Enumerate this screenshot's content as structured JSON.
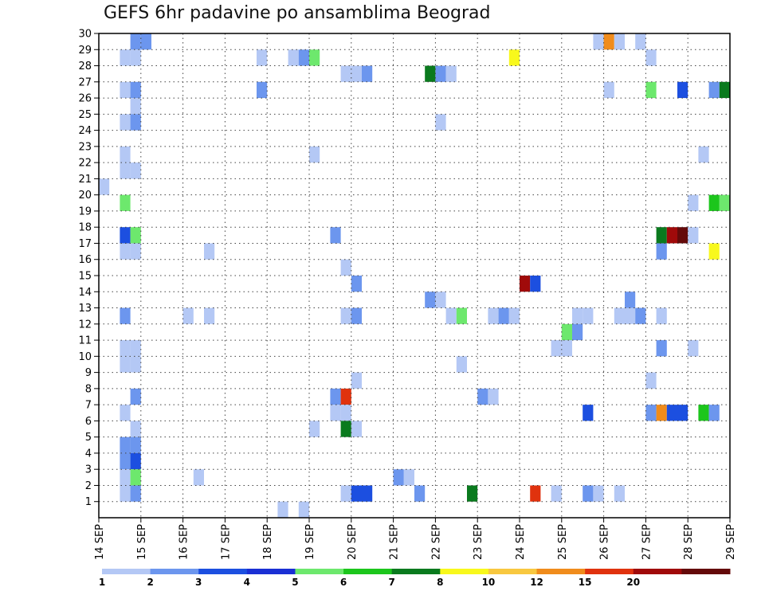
{
  "chart_data": {
    "type": "heatmap",
    "title": "GEFS 6hr padavine po ansamblima Beograd",
    "x_tick_labels": [
      "14 SEP",
      "15 SEP",
      "16 SEP",
      "17 SEP",
      "18 SEP",
      "19 SEP",
      "20 SEP",
      "21 SEP",
      "22 SEP",
      "23 SEP",
      "24 SEP",
      "25 SEP",
      "26 SEP",
      "27 SEP",
      "28 SEP",
      "29 SEP"
    ],
    "y_tick_labels": [
      "1",
      "2",
      "3",
      "4",
      "5",
      "6",
      "7",
      "8",
      "9",
      "10",
      "11",
      "12",
      "13",
      "14",
      "15",
      "16",
      "17",
      "18",
      "19",
      "20",
      "21",
      "22",
      "23",
      "24",
      "25",
      "26",
      "27",
      "28",
      "29",
      "30"
    ],
    "x_units": "6-hour steps from 14 SEP 00Z",
    "x_range": [
      0,
      60
    ],
    "y_range": [
      0,
      30
    ],
    "grid": true,
    "colorbar": {
      "labels": [
        "1",
        "2",
        "3",
        "4",
        "5",
        "6",
        "7",
        "8",
        "10",
        "12",
        "15",
        "20"
      ],
      "colors": [
        "#b4c8f5",
        "#6c96ee",
        "#1c4fe0",
        "#1a2fd4",
        "#6de86d",
        "#1cc61c",
        "#0a7a1e",
        "#f8f81c",
        "#f8c840",
        "#f08c1c",
        "#e0320e",
        "#a00a0a",
        "#640a0a"
      ]
    },
    "cells": [
      {
        "m": 30,
        "t": 3,
        "c": 1
      },
      {
        "m": 30,
        "t": 4,
        "c": 1
      },
      {
        "m": 30,
        "t": 47,
        "c": 0
      },
      {
        "m": 30,
        "t": 48,
        "c": 9
      },
      {
        "m": 30,
        "t": 49,
        "c": 0
      },
      {
        "m": 30,
        "t": 51,
        "c": 0
      },
      {
        "m": 29,
        "t": 2,
        "c": 0
      },
      {
        "m": 29,
        "t": 3,
        "c": 0
      },
      {
        "m": 29,
        "t": 15,
        "c": 0
      },
      {
        "m": 29,
        "t": 18,
        "c": 0
      },
      {
        "m": 29,
        "t": 19,
        "c": 1
      },
      {
        "m": 29,
        "t": 20,
        "c": 4
      },
      {
        "m": 29,
        "t": 39,
        "c": 7
      },
      {
        "m": 29,
        "t": 52,
        "c": 0
      },
      {
        "m": 28,
        "t": 23,
        "c": 0
      },
      {
        "m": 28,
        "t": 24,
        "c": 0
      },
      {
        "m": 28,
        "t": 25,
        "c": 1
      },
      {
        "m": 28,
        "t": 31,
        "c": 6
      },
      {
        "m": 28,
        "t": 32,
        "c": 1
      },
      {
        "m": 28,
        "t": 33,
        "c": 0
      },
      {
        "m": 27,
        "t": 2,
        "c": 0
      },
      {
        "m": 27,
        "t": 3,
        "c": 1
      },
      {
        "m": 27,
        "t": 15,
        "c": 1
      },
      {
        "m": 27,
        "t": 48,
        "c": 0
      },
      {
        "m": 27,
        "t": 52,
        "c": 4
      },
      {
        "m": 27,
        "t": 55,
        "c": 2
      },
      {
        "m": 27,
        "t": 58,
        "c": 1
      },
      {
        "m": 27,
        "t": 59,
        "c": 6
      },
      {
        "m": 26,
        "t": 3,
        "c": 0
      },
      {
        "m": 25,
        "t": 2,
        "c": 0
      },
      {
        "m": 25,
        "t": 3,
        "c": 1
      },
      {
        "m": 25,
        "t": 32,
        "c": 0
      },
      {
        "m": 23,
        "t": 2,
        "c": 0
      },
      {
        "m": 23,
        "t": 20,
        "c": 0
      },
      {
        "m": 23,
        "t": 57,
        "c": 0
      },
      {
        "m": 22,
        "t": 2,
        "c": 0
      },
      {
        "m": 22,
        "t": 3,
        "c": 0
      },
      {
        "m": 21,
        "t": 0,
        "c": 0
      },
      {
        "m": 20,
        "t": 2,
        "c": 4
      },
      {
        "m": 20,
        "t": 56,
        "c": 0
      },
      {
        "m": 20,
        "t": 58,
        "c": 5
      },
      {
        "m": 20,
        "t": 59,
        "c": 4
      },
      {
        "m": 18,
        "t": 2,
        "c": 2
      },
      {
        "m": 18,
        "t": 3,
        "c": 4
      },
      {
        "m": 18,
        "t": 22,
        "c": 1
      },
      {
        "m": 18,
        "t": 53,
        "c": 6
      },
      {
        "m": 18,
        "t": 54,
        "c": 11
      },
      {
        "m": 18,
        "t": 55,
        "c": 12
      },
      {
        "m": 18,
        "t": 56,
        "c": 0
      },
      {
        "m": 17,
        "t": 2,
        "c": 0
      },
      {
        "m": 17,
        "t": 3,
        "c": 0
      },
      {
        "m": 17,
        "t": 10,
        "c": 0
      },
      {
        "m": 17,
        "t": 53,
        "c": 1
      },
      {
        "m": 17,
        "t": 58,
        "c": 7
      },
      {
        "m": 16,
        "t": 23,
        "c": 0
      },
      {
        "m": 15,
        "t": 24,
        "c": 1
      },
      {
        "m": 15,
        "t": 40,
        "c": 11
      },
      {
        "m": 15,
        "t": 41,
        "c": 2
      },
      {
        "m": 14,
        "t": 31,
        "c": 1
      },
      {
        "m": 14,
        "t": 32,
        "c": 0
      },
      {
        "m": 14,
        "t": 50,
        "c": 1
      },
      {
        "m": 13,
        "t": 2,
        "c": 1
      },
      {
        "m": 13,
        "t": 8,
        "c": 0
      },
      {
        "m": 13,
        "t": 10,
        "c": 0
      },
      {
        "m": 13,
        "t": 23,
        "c": 0
      },
      {
        "m": 13,
        "t": 24,
        "c": 1
      },
      {
        "m": 13,
        "t": 33,
        "c": 0
      },
      {
        "m": 13,
        "t": 34,
        "c": 4
      },
      {
        "m": 13,
        "t": 37,
        "c": 0
      },
      {
        "m": 13,
        "t": 38,
        "c": 1
      },
      {
        "m": 13,
        "t": 39,
        "c": 0
      },
      {
        "m": 13,
        "t": 45,
        "c": 0
      },
      {
        "m": 13,
        "t": 46,
        "c": 0
      },
      {
        "m": 13,
        "t": 49,
        "c": 0
      },
      {
        "m": 13,
        "t": 50,
        "c": 0
      },
      {
        "m": 13,
        "t": 51,
        "c": 1
      },
      {
        "m": 13,
        "t": 53,
        "c": 0
      },
      {
        "m": 12,
        "t": 44,
        "c": 4
      },
      {
        "m": 12,
        "t": 45,
        "c": 1
      },
      {
        "m": 11,
        "t": 2,
        "c": 0
      },
      {
        "m": 11,
        "t": 3,
        "c": 0
      },
      {
        "m": 11,
        "t": 43,
        "c": 0
      },
      {
        "m": 11,
        "t": 44,
        "c": 0
      },
      {
        "m": 11,
        "t": 53,
        "c": 1
      },
      {
        "m": 11,
        "t": 56,
        "c": 0
      },
      {
        "m": 10,
        "t": 2,
        "c": 0
      },
      {
        "m": 10,
        "t": 3,
        "c": 0
      },
      {
        "m": 10,
        "t": 34,
        "c": 0
      },
      {
        "m": 9,
        "t": 24,
        "c": 0
      },
      {
        "m": 9,
        "t": 52,
        "c": 0
      },
      {
        "m": 8,
        "t": 3,
        "c": 1
      },
      {
        "m": 8,
        "t": 22,
        "c": 1
      },
      {
        "m": 8,
        "t": 23,
        "c": 10
      },
      {
        "m": 8,
        "t": 36,
        "c": 1
      },
      {
        "m": 8,
        "t": 37,
        "c": 0
      },
      {
        "m": 7,
        "t": 2,
        "c": 0
      },
      {
        "m": 7,
        "t": 22,
        "c": 0
      },
      {
        "m": 7,
        "t": 23,
        "c": 0
      },
      {
        "m": 7,
        "t": 46,
        "c": 2
      },
      {
        "m": 7,
        "t": 52,
        "c": 1
      },
      {
        "m": 7,
        "t": 53,
        "c": 9
      },
      {
        "m": 7,
        "t": 54,
        "c": 2
      },
      {
        "m": 7,
        "t": 55,
        "c": 2
      },
      {
        "m": 7,
        "t": 57,
        "c": 5
      },
      {
        "m": 7,
        "t": 58,
        "c": 1
      },
      {
        "m": 6,
        "t": 3,
        "c": 0
      },
      {
        "m": 6,
        "t": 20,
        "c": 0
      },
      {
        "m": 6,
        "t": 23,
        "c": 6
      },
      {
        "m": 6,
        "t": 24,
        "c": 0
      },
      {
        "m": 5,
        "t": 2,
        "c": 1
      },
      {
        "m": 5,
        "t": 3,
        "c": 1
      },
      {
        "m": 4,
        "t": 2,
        "c": 1
      },
      {
        "m": 4,
        "t": 3,
        "c": 2
      },
      {
        "m": 3,
        "t": 2,
        "c": 0
      },
      {
        "m": 3,
        "t": 3,
        "c": 4
      },
      {
        "m": 3,
        "t": 9,
        "c": 0
      },
      {
        "m": 3,
        "t": 28,
        "c": 1
      },
      {
        "m": 3,
        "t": 29,
        "c": 0
      },
      {
        "m": 2,
        "t": 2,
        "c": 0
      },
      {
        "m": 2,
        "t": 3,
        "c": 1
      },
      {
        "m": 2,
        "t": 23,
        "c": 0
      },
      {
        "m": 2,
        "t": 24,
        "c": 2
      },
      {
        "m": 2,
        "t": 25,
        "c": 2
      },
      {
        "m": 2,
        "t": 30,
        "c": 1
      },
      {
        "m": 2,
        "t": 35,
        "c": 6
      },
      {
        "m": 2,
        "t": 41,
        "c": 10
      },
      {
        "m": 2,
        "t": 43,
        "c": 0
      },
      {
        "m": 2,
        "t": 46,
        "c": 1
      },
      {
        "m": 2,
        "t": 47,
        "c": 0
      },
      {
        "m": 2,
        "t": 49,
        "c": 0
      },
      {
        "m": 1,
        "t": 17,
        "c": 0
      },
      {
        "m": 1,
        "t": 19,
        "c": 0
      }
    ]
  }
}
